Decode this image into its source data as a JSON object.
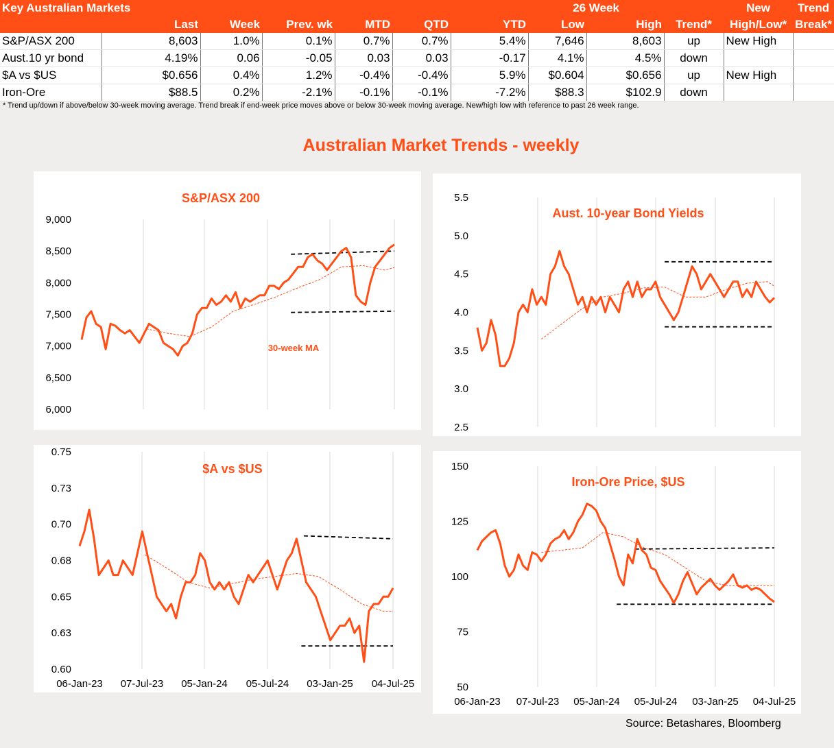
{
  "table": {
    "title": "Key Australian Markets",
    "group_header": "26 Week",
    "columns": [
      "",
      "Last",
      "Week",
      "Prev. wk",
      "MTD",
      "QTD",
      "YTD",
      "Low",
      "High",
      "Trend*",
      "High/Low*",
      "Break*"
    ],
    "top_headers": [
      "New",
      "Trend"
    ],
    "rows": [
      [
        "S&P/ASX 200",
        "8,603",
        "1.0%",
        "0.1%",
        "0.7%",
        "0.7%",
        "5.4%",
        "7,646",
        "8,603",
        "up",
        "New High",
        ""
      ],
      [
        "Aust.10 yr bond",
        "4.19%",
        "0.06",
        "-0.05",
        "0.03",
        "0.03",
        "-0.17",
        "4.1%",
        "4.5%",
        "down",
        "",
        ""
      ],
      [
        "$A vs $US",
        "$0.656",
        "0.4%",
        "1.2%",
        "-0.4%",
        "-0.4%",
        "5.9%",
        "$0.604",
        "$0.656",
        "up",
        "New High",
        ""
      ],
      [
        "Iron-Ore",
        "$88.5",
        "0.2%",
        "-2.1%",
        "-0.1%",
        "-0.1%",
        "-7.2%",
        "$88.3",
        "$102.9",
        "down",
        "",
        ""
      ]
    ],
    "footnote": "*  Trend up/down if above/below 30-week moving average. Trend break if end-week price moves above or below 30-week moving average.  New/high low with reference to past 26 week range."
  },
  "main_title": "Australian Market Trends - weekly",
  "source": "Source:  Betashares, Bloomberg",
  "colors": {
    "accent": "#ff4f17",
    "grid": "#d9d9d9",
    "reference_line": "#000000"
  },
  "chart_data": [
    {
      "type": "line",
      "title": "S&P/ASX 200",
      "annotation": "30-week MA",
      "ylim": [
        6000,
        9000
      ],
      "yticks": [
        "6,000",
        "6,500",
        "7,000",
        "7,500",
        "8,000",
        "8,500",
        "9,000"
      ],
      "xlim": [
        "2023-01-06",
        "2025-07-04"
      ],
      "xticks": [],
      "grid": "vertical",
      "series": [
        {
          "role": "price",
          "x": [
            "2023-01-06",
            "2023-01-20",
            "2023-02-03",
            "2023-02-17",
            "2023-03-03",
            "2023-03-17",
            "2023-03-31",
            "2023-04-14",
            "2023-04-28",
            "2023-05-12",
            "2023-05-26",
            "2023-06-09",
            "2023-06-23",
            "2023-07-07",
            "2023-07-21",
            "2023-08-04",
            "2023-08-18",
            "2023-09-01",
            "2023-09-15",
            "2023-09-29",
            "2023-10-13",
            "2023-10-27",
            "2023-11-10",
            "2023-11-24",
            "2023-12-08",
            "2023-12-22",
            "2024-01-05",
            "2024-01-19",
            "2024-02-02",
            "2024-02-16",
            "2024-03-01",
            "2024-03-15",
            "2024-03-29",
            "2024-04-12",
            "2024-04-26",
            "2024-05-10",
            "2024-05-24",
            "2024-06-07",
            "2024-06-21",
            "2024-07-05",
            "2024-07-19",
            "2024-08-02",
            "2024-08-16",
            "2024-08-30",
            "2024-09-13",
            "2024-09-27",
            "2024-10-11",
            "2024-10-25",
            "2024-11-08",
            "2024-11-22",
            "2024-12-06",
            "2024-12-20",
            "2025-01-03",
            "2025-01-17",
            "2025-01-31",
            "2025-02-14",
            "2025-02-28",
            "2025-03-14",
            "2025-03-28",
            "2025-04-11",
            "2025-04-25",
            "2025-05-09",
            "2025-05-23",
            "2025-06-06",
            "2025-06-20",
            "2025-07-04"
          ],
          "y": [
            7100,
            7450,
            7550,
            7350,
            7300,
            6950,
            7350,
            7320,
            7250,
            7200,
            7250,
            7150,
            7050,
            7200,
            7350,
            7300,
            7250,
            7050,
            7000,
            6950,
            6850,
            7000,
            7050,
            7200,
            7500,
            7600,
            7600,
            7750,
            7650,
            7700,
            7800,
            7700,
            7850,
            7600,
            7750,
            7700,
            7750,
            7800,
            7800,
            7950,
            7950,
            7900,
            8000,
            8050,
            8150,
            8250,
            8250,
            8400,
            8450,
            8350,
            8300,
            8200,
            8300,
            8400,
            8500,
            8550,
            8400,
            7800,
            7700,
            7650,
            8000,
            8250,
            8350,
            8450,
            8550,
            8603
          ]
        },
        {
          "role": "moving_average",
          "x": [
            "2023-07-14",
            "2023-09-15",
            "2023-11-17",
            "2024-01-19",
            "2024-03-22",
            "2024-05-24",
            "2024-07-26",
            "2024-09-27",
            "2024-11-29",
            "2025-01-31",
            "2025-04-04",
            "2025-06-06",
            "2025-07-04"
          ],
          "y": [
            7270,
            7200,
            7150,
            7300,
            7550,
            7660,
            7780,
            7920,
            8050,
            8250,
            8270,
            8200,
            8240
          ]
        }
      ],
      "reference_lines": [
        {
          "x": [
            "2024-09-06",
            "2025-07-04"
          ],
          "y": [
            8450,
            8500
          ]
        },
        {
          "x": [
            "2024-09-06",
            "2025-07-04"
          ],
          "y": [
            7530,
            7550
          ]
        }
      ]
    },
    {
      "type": "line",
      "title": "Aust. 10-year Bond Yields",
      "ylim": [
        2.5,
        5.5
      ],
      "yticks": [
        "2.5",
        "3.0",
        "3.5",
        "4.0",
        "4.5",
        "5.0",
        "5.5"
      ],
      "xlim": [
        "2023-01-06",
        "2025-07-04"
      ],
      "xticks": [],
      "grid": "vertical",
      "series": [
        {
          "role": "price",
          "x": [
            "2023-01-06",
            "2023-01-20",
            "2023-02-03",
            "2023-02-17",
            "2023-03-03",
            "2023-03-17",
            "2023-03-31",
            "2023-04-14",
            "2023-04-28",
            "2023-05-12",
            "2023-05-26",
            "2023-06-09",
            "2023-06-23",
            "2023-07-07",
            "2023-07-21",
            "2023-08-04",
            "2023-08-18",
            "2023-09-01",
            "2023-09-15",
            "2023-09-29",
            "2023-10-13",
            "2023-10-27",
            "2023-11-10",
            "2023-11-24",
            "2023-12-08",
            "2023-12-22",
            "2024-01-05",
            "2024-01-19",
            "2024-02-02",
            "2024-02-16",
            "2024-03-01",
            "2024-03-15",
            "2024-03-29",
            "2024-04-12",
            "2024-04-26",
            "2024-05-10",
            "2024-05-24",
            "2024-06-07",
            "2024-06-21",
            "2024-07-05",
            "2024-07-19",
            "2024-08-02",
            "2024-08-16",
            "2024-08-30",
            "2024-09-13",
            "2024-09-27",
            "2024-10-11",
            "2024-10-25",
            "2024-11-08",
            "2024-11-22",
            "2024-12-06",
            "2024-12-20",
            "2025-01-03",
            "2025-01-17",
            "2025-01-31",
            "2025-02-14",
            "2025-02-28",
            "2025-03-14",
            "2025-03-28",
            "2025-04-11",
            "2025-04-25",
            "2025-05-09",
            "2025-05-23",
            "2025-06-06",
            "2025-06-20",
            "2025-07-04"
          ],
          "y": [
            3.8,
            3.5,
            3.6,
            3.9,
            3.7,
            3.3,
            3.3,
            3.4,
            3.6,
            4.0,
            4.1,
            4.0,
            4.3,
            4.1,
            4.2,
            4.1,
            4.5,
            4.6,
            4.8,
            4.6,
            4.5,
            4.3,
            4.1,
            4.2,
            4.0,
            4.2,
            4.1,
            4.2,
            4.0,
            4.2,
            4.1,
            4.0,
            4.3,
            4.4,
            4.2,
            4.4,
            4.2,
            4.3,
            4.3,
            4.4,
            4.2,
            4.1,
            4.0,
            3.9,
            4.0,
            4.2,
            4.4,
            4.6,
            4.5,
            4.3,
            4.4,
            4.5,
            4.4,
            4.3,
            4.2,
            4.3,
            4.4,
            4.4,
            4.2,
            4.3,
            4.2,
            4.4,
            4.3,
            4.2,
            4.13,
            4.19
          ]
        },
        {
          "role": "moving_average",
          "x": [
            "2023-07-21",
            "2023-09-22",
            "2023-11-24",
            "2024-01-26",
            "2024-03-29",
            "2024-05-31",
            "2024-08-02",
            "2024-10-04",
            "2024-12-06",
            "2025-02-07",
            "2025-04-11",
            "2025-06-13",
            "2025-07-04"
          ],
          "y": [
            3.65,
            3.85,
            4.05,
            4.2,
            4.25,
            4.32,
            4.33,
            4.2,
            4.2,
            4.3,
            4.38,
            4.4,
            4.34
          ]
        }
      ],
      "reference_lines": [
        {
          "x": [
            "2024-08-02",
            "2025-07-04"
          ],
          "y": [
            4.66,
            4.66
          ]
        },
        {
          "x": [
            "2024-08-02",
            "2025-07-04"
          ],
          "y": [
            3.81,
            3.81
          ]
        }
      ]
    },
    {
      "type": "line",
      "title": "$A vs $US",
      "ylim": [
        0.6,
        0.75
      ],
      "yticks": [
        "0.60",
        "0.63",
        "0.65",
        "0.68",
        "0.70",
        "0.73",
        "0.75"
      ],
      "xlim": [
        "2023-01-06",
        "2025-07-04"
      ],
      "xticks": [
        "06-Jan-23",
        "07-Jul-23",
        "05-Jan-24",
        "05-Jul-24",
        "03-Jan-25",
        "04-Jul-25"
      ],
      "grid": "vertical",
      "series": [
        {
          "role": "price",
          "x": [
            "2023-01-06",
            "2023-01-20",
            "2023-02-03",
            "2023-02-17",
            "2023-03-03",
            "2023-03-17",
            "2023-03-31",
            "2023-04-14",
            "2023-04-28",
            "2023-05-12",
            "2023-05-26",
            "2023-06-09",
            "2023-06-23",
            "2023-07-07",
            "2023-07-21",
            "2023-08-04",
            "2023-08-18",
            "2023-09-01",
            "2023-09-15",
            "2023-09-29",
            "2023-10-13",
            "2023-10-27",
            "2023-11-10",
            "2023-11-24",
            "2023-12-08",
            "2023-12-22",
            "2024-01-05",
            "2024-01-19",
            "2024-02-02",
            "2024-02-16",
            "2024-03-01",
            "2024-03-15",
            "2024-03-29",
            "2024-04-12",
            "2024-04-26",
            "2024-05-10",
            "2024-05-24",
            "2024-06-07",
            "2024-06-21",
            "2024-07-05",
            "2024-07-19",
            "2024-08-02",
            "2024-08-16",
            "2024-08-30",
            "2024-09-13",
            "2024-09-27",
            "2024-10-11",
            "2024-10-25",
            "2024-11-08",
            "2024-11-22",
            "2024-12-06",
            "2024-12-20",
            "2025-01-03",
            "2025-01-17",
            "2025-01-31",
            "2025-02-14",
            "2025-02-28",
            "2025-03-14",
            "2025-03-28",
            "2025-04-11",
            "2025-04-25",
            "2025-05-09",
            "2025-05-23",
            "2025-06-06",
            "2025-06-20",
            "2025-07-04"
          ],
          "y": [
            0.685,
            0.695,
            0.71,
            0.69,
            0.665,
            0.67,
            0.675,
            0.665,
            0.665,
            0.675,
            0.67,
            0.665,
            0.68,
            0.695,
            0.68,
            0.665,
            0.65,
            0.645,
            0.64,
            0.645,
            0.635,
            0.65,
            0.66,
            0.66,
            0.665,
            0.68,
            0.675,
            0.66,
            0.655,
            0.66,
            0.655,
            0.66,
            0.65,
            0.645,
            0.655,
            0.665,
            0.66,
            0.665,
            0.67,
            0.675,
            0.665,
            0.655,
            0.665,
            0.675,
            0.68,
            0.69,
            0.675,
            0.66,
            0.655,
            0.65,
            0.64,
            0.63,
            0.62,
            0.625,
            0.63,
            0.63,
            0.635,
            0.625,
            0.63,
            0.605,
            0.64,
            0.645,
            0.645,
            0.65,
            0.65,
            0.656
          ]
        },
        {
          "role": "moving_average",
          "x": [
            "2023-07-14",
            "2023-09-15",
            "2023-11-17",
            "2024-01-19",
            "2024-03-22",
            "2024-05-24",
            "2024-07-26",
            "2024-09-27",
            "2024-11-29",
            "2025-01-31",
            "2025-04-04",
            "2025-06-06",
            "2025-07-04"
          ],
          "y": [
            0.679,
            0.67,
            0.66,
            0.656,
            0.659,
            0.662,
            0.664,
            0.666,
            0.664,
            0.655,
            0.645,
            0.64,
            0.64
          ]
        }
      ],
      "reference_lines": [
        {
          "x": [
            "2024-10-18",
            "2025-07-04"
          ],
          "y": [
            0.692,
            0.69
          ]
        },
        {
          "x": [
            "2024-10-11",
            "2025-07-04"
          ],
          "y": [
            0.616,
            0.616
          ]
        }
      ]
    },
    {
      "type": "line",
      "title": "Iron-Ore Price, $US",
      "ylim": [
        50,
        150
      ],
      "yticks": [
        "50",
        "75",
        "100",
        "125",
        "150"
      ],
      "xlim": [
        "2023-01-06",
        "2025-07-04"
      ],
      "xticks": [
        "06-Jan-23",
        "07-Jul-23",
        "05-Jan-24",
        "05-Jul-24",
        "03-Jan-25",
        "04-Jul-25"
      ],
      "grid": "vertical",
      "series": [
        {
          "role": "price",
          "x": [
            "2023-01-06",
            "2023-01-20",
            "2023-02-03",
            "2023-02-17",
            "2023-03-03",
            "2023-03-17",
            "2023-03-31",
            "2023-04-14",
            "2023-04-28",
            "2023-05-12",
            "2023-05-26",
            "2023-06-09",
            "2023-06-23",
            "2023-07-07",
            "2023-07-21",
            "2023-08-04",
            "2023-08-18",
            "2023-09-01",
            "2023-09-15",
            "2023-09-29",
            "2023-10-13",
            "2023-10-27",
            "2023-11-10",
            "2023-11-24",
            "2023-12-08",
            "2023-12-22",
            "2024-01-05",
            "2024-01-19",
            "2024-02-02",
            "2024-02-16",
            "2024-03-01",
            "2024-03-15",
            "2024-03-29",
            "2024-04-12",
            "2024-04-26",
            "2024-05-10",
            "2024-05-24",
            "2024-06-07",
            "2024-06-21",
            "2024-07-05",
            "2024-07-19",
            "2024-08-02",
            "2024-08-16",
            "2024-08-30",
            "2024-09-13",
            "2024-09-27",
            "2024-10-11",
            "2024-10-25",
            "2024-11-08",
            "2024-11-22",
            "2024-12-06",
            "2024-12-20",
            "2025-01-03",
            "2025-01-17",
            "2025-01-31",
            "2025-02-14",
            "2025-02-28",
            "2025-03-14",
            "2025-03-28",
            "2025-04-11",
            "2025-04-25",
            "2025-05-09",
            "2025-05-23",
            "2025-06-06",
            "2025-06-20",
            "2025-07-04"
          ],
          "y": [
            112,
            116,
            118,
            120,
            121,
            115,
            105,
            100,
            103,
            110,
            105,
            103,
            111,
            110,
            107,
            110,
            115,
            117,
            118,
            121,
            117,
            120,
            125,
            128,
            133,
            132,
            130,
            125,
            122,
            115,
            108,
            100,
            96,
            110,
            106,
            117,
            112,
            110,
            104,
            103,
            98,
            95,
            92,
            88,
            92,
            98,
            102,
            97,
            92,
            95,
            97,
            99,
            96,
            94,
            96,
            98,
            101,
            96,
            95,
            96,
            94,
            95,
            94,
            92,
            90,
            88.5
          ]
        },
        {
          "role": "moving_average",
          "x": [
            "2023-07-21",
            "2023-09-22",
            "2023-11-24",
            "2024-01-26",
            "2024-03-29",
            "2024-05-31",
            "2024-08-02",
            "2024-10-04",
            "2024-12-06",
            "2025-02-07",
            "2025-04-11",
            "2025-06-13",
            "2025-07-04"
          ],
          "y": [
            111,
            112,
            113,
            120,
            118,
            113,
            110,
            104,
            98,
            96,
            96,
            96,
            96
          ]
        }
      ],
      "reference_lines": [
        {
          "x": [
            "2024-05-03",
            "2025-07-04"
          ],
          "y": [
            112.5,
            113
          ]
        },
        {
          "x": [
            "2024-03-08",
            "2025-07-04"
          ],
          "y": [
            87.5,
            87.5
          ]
        }
      ]
    }
  ]
}
